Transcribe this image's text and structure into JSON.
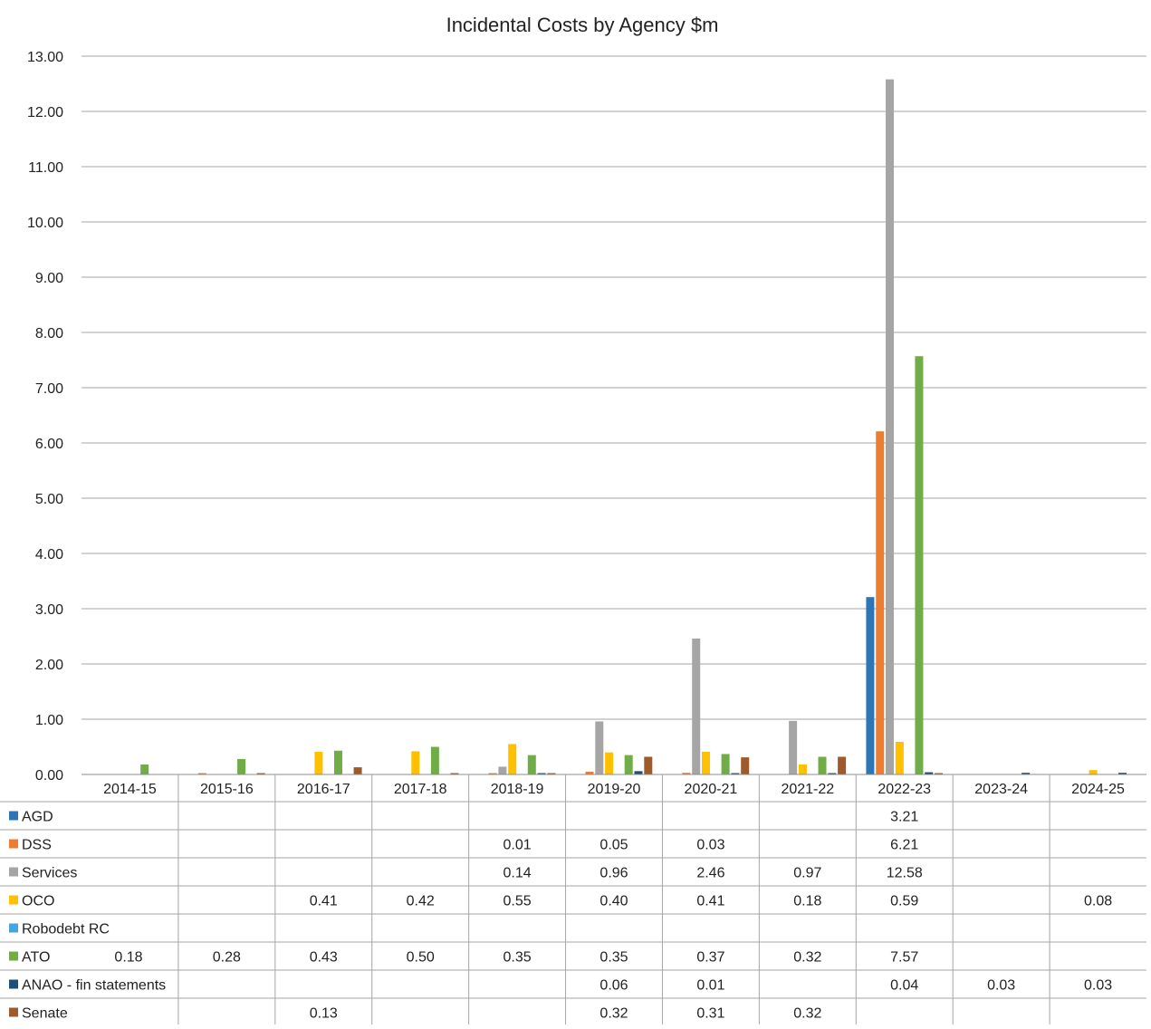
{
  "chart_data": {
    "type": "bar",
    "title": "Incidental Costs by Agency $m",
    "categories": [
      "2014-15",
      "2015-16",
      "2016-17",
      "2017-18",
      "2018-19",
      "2019-20",
      "2020-21",
      "2021-22",
      "2022-23",
      "2023-24",
      "2024-25"
    ],
    "ylim": [
      0,
      13
    ],
    "y_ticks": [
      "0.00",
      "1.00",
      "2.00",
      "3.00",
      "4.00",
      "5.00",
      "6.00",
      "7.00",
      "8.00",
      "9.00",
      "10.00",
      "11.00",
      "12.00",
      "13.00"
    ],
    "grid": true,
    "legend": "data-table",
    "series": [
      {
        "name": "AGD",
        "color": "#2e75b6",
        "values": [
          null,
          null,
          null,
          null,
          null,
          null,
          null,
          null,
          3.21,
          null,
          null
        ]
      },
      {
        "name": "DSS",
        "color": "#ed7d31",
        "values": [
          null,
          null,
          null,
          null,
          0.01,
          0.05,
          0.03,
          null,
          6.21,
          null,
          null
        ]
      },
      {
        "name": "Services",
        "color": "#a5a5a5",
        "values": [
          null,
          null,
          null,
          null,
          0.14,
          0.96,
          2.46,
          0.97,
          12.58,
          null,
          null
        ]
      },
      {
        "name": "OCO",
        "color": "#ffc000",
        "values": [
          null,
          null,
          0.41,
          0.42,
          0.55,
          0.4,
          0.41,
          0.18,
          0.59,
          null,
          0.08
        ]
      },
      {
        "name": "Robodebt RC",
        "color": "#4aa3df",
        "values": [
          null,
          null,
          null,
          null,
          null,
          null,
          null,
          null,
          null,
          null,
          null
        ]
      },
      {
        "name": "ATO",
        "color": "#70ad47",
        "values": [
          0.18,
          0.28,
          0.43,
          0.5,
          0.35,
          0.35,
          0.37,
          0.32,
          7.57,
          null,
          null
        ]
      },
      {
        "name": "ANAO - fin statements",
        "color": "#1f4e79",
        "values": [
          null,
          null,
          null,
          null,
          null,
          0.06,
          0.01,
          null,
          0.04,
          0.03,
          0.03
        ]
      },
      {
        "name": "Senate",
        "color": "#9e5a2a",
        "values": [
          null,
          null,
          0.13,
          null,
          null,
          0.32,
          0.31,
          0.32,
          null,
          null,
          null
        ]
      }
    ],
    "table": [
      [
        "",
        "",
        "",
        "",
        "",
        "",
        "",
        "",
        "3.21",
        "",
        ""
      ],
      [
        "",
        "",
        "",
        "",
        "0.01",
        "0.05",
        "0.03",
        "",
        "6.21",
        "",
        ""
      ],
      [
        "",
        "",
        "",
        "",
        "0.14",
        "0.96",
        "2.46",
        "0.97",
        "12.58",
        "",
        ""
      ],
      [
        "",
        "",
        "0.41",
        "0.42",
        "0.55",
        "0.40",
        "0.41",
        "0.18",
        "0.59",
        "",
        "0.08"
      ],
      [
        "",
        "",
        "",
        "",
        "",
        "",
        "",
        "",
        "",
        "",
        ""
      ],
      [
        "0.18",
        "0.28",
        "0.43",
        "0.50",
        "0.35",
        "0.35",
        "0.37",
        "0.32",
        "7.57",
        "",
        ""
      ],
      [
        "",
        "",
        "",
        "",
        "",
        "0.06",
        "0.01",
        "",
        "0.04",
        "0.03",
        "0.03"
      ],
      [
        "",
        "",
        "0.13",
        "",
        "",
        "0.32",
        "0.31",
        "0.32",
        "",
        "",
        ""
      ]
    ],
    "unlisted_small_bars": [
      {
        "series": "DSS",
        "category": "2015-16",
        "value": 0.02
      },
      {
        "series": "Senate",
        "category": "2015-16",
        "value": 0.02
      },
      {
        "series": "Senate",
        "category": "2017-18",
        "value": 0.02
      },
      {
        "series": "Senate",
        "category": "2018-19",
        "value": 0.02
      },
      {
        "series": "ANAO - fin statements",
        "category": "2018-19",
        "value": 0.01
      },
      {
        "series": "ANAO - fin statements",
        "category": "2021-22",
        "value": 0.01
      },
      {
        "series": "Senate",
        "category": "2022-23",
        "value": 0.02
      }
    ]
  }
}
